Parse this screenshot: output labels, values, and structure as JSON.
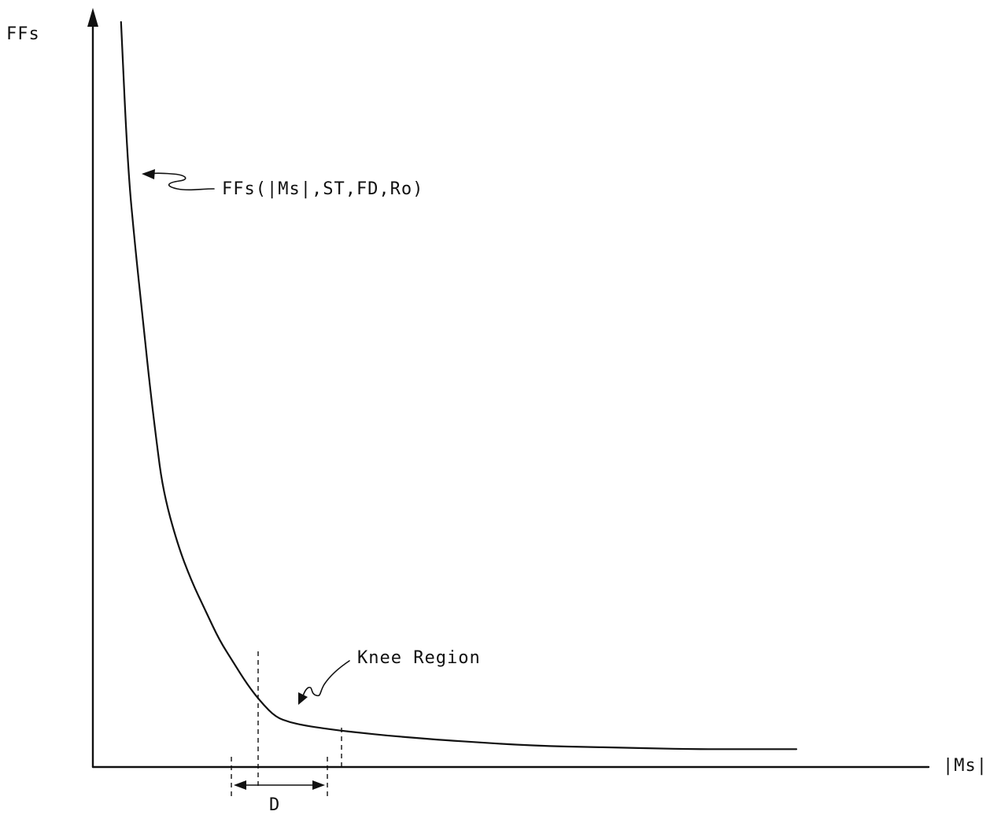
{
  "chart_data": {
    "type": "line",
    "title": "",
    "ylabel": "FFs",
    "xlabel": "|Ms|",
    "ticks": "none",
    "grid": false,
    "series": [
      {
        "name": "FFs(|Ms|,ST,FD,Ro)",
        "x": [
          0.04,
          0.05,
          0.06,
          0.07,
          0.08,
          0.09,
          0.1,
          0.12,
          0.14,
          0.16,
          0.18,
          0.2,
          0.22,
          0.24,
          0.26,
          0.28,
          0.3,
          0.32,
          0.35,
          0.38,
          0.42,
          0.46,
          0.5,
          0.55,
          0.6,
          0.65,
          0.7,
          0.75,
          0.8,
          0.85,
          0.9,
          1.0
        ],
        "y": [
          1.0,
          0.8,
          0.7,
          0.61,
          0.52,
          0.44,
          0.37,
          0.3,
          0.25,
          0.21,
          0.17,
          0.14,
          0.11,
          0.086,
          0.067,
          0.06,
          0.056,
          0.053,
          0.049,
          0.046,
          0.042,
          0.039,
          0.036,
          0.033,
          0.03,
          0.028,
          0.027,
          0.026,
          0.025,
          0.024,
          0.024,
          0.024
        ]
      }
    ],
    "annotations": {
      "curve_label": "FFs(|Ms|,ST,FD,Ro)",
      "knee_label": "Knee Region",
      "interval_label": "D"
    }
  }
}
